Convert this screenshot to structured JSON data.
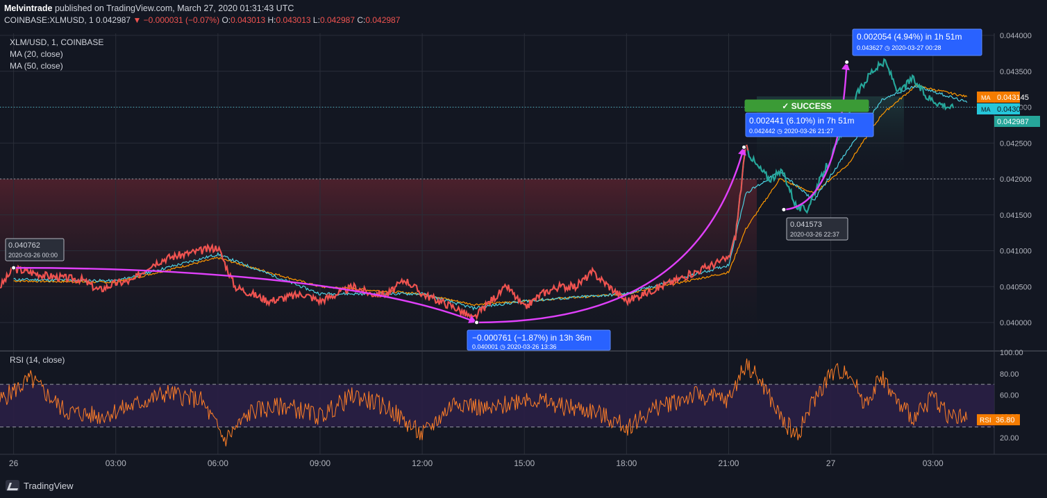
{
  "header": {
    "publisher": "Melvintrade",
    "published_text": "published on TradingView.com, March 27, 2020 01:31:43 UTC",
    "symbol": "COINBASE:XLMUSD, 1",
    "last": "0.042987",
    "change": "▼ −0.000031 (−0.07%)",
    "o_label": "O:",
    "o_value": "0.043013",
    "h_label": "H:",
    "h_value": "0.043013",
    "l_label": "L:",
    "l_value": "0.042987",
    "c_label": "C:",
    "c_value": "0.042987"
  },
  "legend": {
    "series": "XLM/USD, 1, COINBASE",
    "ma20": "MA (20, close)",
    "ma50": "MA (50, close)",
    "rsi": "RSI (14, close)"
  },
  "footer": {
    "brand": "TradingView"
  },
  "colors": {
    "background": "#131722",
    "price_down": "#ef5350",
    "price_up": "#26a69a",
    "ma20": "#4dd0e1",
    "ma50": "#ff9800",
    "rsi": "#ff7f27",
    "arrow": "#e040fb",
    "callout": "#2962ff",
    "success": "#3b9b36"
  },
  "chart_data": [
    {
      "type": "line",
      "pane": "price",
      "x_labels": [
        "26",
        "03:00",
        "06:00",
        "09:00",
        "12:00",
        "15:00",
        "18:00",
        "21:00",
        "27",
        "03:00"
      ],
      "x_label_hours": [
        0,
        3,
        6,
        9,
        12,
        15,
        18,
        21,
        24,
        27
      ],
      "y_ticks": [
        "0.040000",
        "0.040500",
        "0.041000",
        "0.041500",
        "0.042000",
        "0.042500",
        "0.043000",
        "0.043500",
        "0.044000"
      ],
      "ylim": [
        0.04,
        0.044
      ],
      "xlim_hours": [
        -0.4,
        28.8
      ],
      "series": [
        {
          "name": "XLM/USD",
          "x_hours": [
            -0.4,
            0,
            0.5,
            1,
            1.5,
            2,
            2.5,
            3,
            3.5,
            4,
            4.5,
            5,
            5.5,
            6,
            6.5,
            7,
            7.5,
            8,
            8.5,
            9,
            9.5,
            10,
            10.5,
            11,
            11.5,
            12,
            12.5,
            13,
            13.5,
            14,
            14.5,
            15,
            15.5,
            16,
            16.5,
            17,
            17.5,
            18,
            18.5,
            19,
            19.5,
            20,
            20.5,
            21,
            21.2,
            21.5,
            21.8,
            22.2,
            22.6,
            23,
            23.3,
            23.6,
            24,
            24.4,
            24.8,
            25.2,
            25.6,
            26,
            26.4,
            26.8,
            27.2,
            27.6,
            28.0,
            28.4,
            28.8
          ],
          "values": [
            0.0405,
            0.04075,
            0.0407,
            0.04065,
            0.04062,
            0.0406,
            0.04045,
            0.04055,
            0.04058,
            0.0408,
            0.0409,
            0.04095,
            0.041,
            0.04105,
            0.0405,
            0.0404,
            0.0403,
            0.04035,
            0.0404,
            0.0403,
            0.0404,
            0.0405,
            0.0404,
            0.0404,
            0.0406,
            0.0404,
            0.0403,
            0.0402,
            0.04005,
            0.0403,
            0.0405,
            0.0402,
            0.0404,
            0.0405,
            0.0405,
            0.0407,
            0.0405,
            0.0403,
            0.0404,
            0.0405,
            0.0406,
            0.0407,
            0.0408,
            0.0409,
            0.0412,
            0.042442,
            0.0422,
            0.042,
            0.0421,
            0.0416,
            0.041573,
            0.0419,
            0.0423,
            0.0427,
            0.0432,
            0.0435,
            0.043627,
            0.0432,
            0.0434,
            0.04315,
            0.04305,
            0.042987,
            null,
            null,
            null
          ]
        },
        {
          "name": "MA (20, close)",
          "x_hours": [
            0,
            3,
            6,
            9,
            12,
            13.5,
            15,
            18,
            21,
            21.5,
            22.5,
            23.5,
            24.5,
            25.5,
            26.5,
            28.0
          ],
          "values": [
            0.0406,
            0.04058,
            0.04095,
            0.0404,
            0.0404,
            0.0402,
            0.0403,
            0.0404,
            0.0408,
            0.0418,
            0.0421,
            0.0417,
            0.0424,
            0.0431,
            0.0433,
            0.043065
          ]
        },
        {
          "name": "MA (50, close)",
          "x_hours": [
            0,
            3,
            6,
            9,
            12,
            13.5,
            15,
            18,
            21,
            21.5,
            22.5,
            23.5,
            24.5,
            25.5,
            26.5,
            28.0
          ],
          "values": [
            0.04058,
            0.04056,
            0.0409,
            0.0405,
            0.0404,
            0.04025,
            0.0403,
            0.0404,
            0.0407,
            0.0413,
            0.042,
            0.0418,
            0.0422,
            0.0429,
            0.0433,
            0.043145
          ]
        }
      ],
      "price_labels": {
        "ma50_tag": "MA",
        "ma50_value": "0.043145",
        "ma20_tag": "MA",
        "ma20_value": "0.043065",
        "last_value": "0.042987"
      },
      "annotations": {
        "start_price": "0.040762",
        "start_date": "2020-03-26 00:00",
        "low_change": "−0.000761 (−1.87%) in 13h 36m",
        "low_sub": "0.040001 ◷ 2020-03-26 13:36",
        "mid_change": "0.002441 (6.10%) in 7h 51m",
        "mid_sub": "0.042442 ◷ 2020-03-26 21:27",
        "dip_price": "0.041573",
        "dip_date": "2020-03-26 22:37",
        "peak_change": "0.002054 (4.94%) in 1h 51m",
        "peak_sub": "0.043627 ◷ 2020-03-27 00:28",
        "success": "✓ SUCCESS"
      }
    },
    {
      "type": "line",
      "pane": "rsi",
      "name": "RSI (14, close)",
      "y_ticks": [
        "20.00",
        "40.00",
        "60.00",
        "80.00",
        "100.00"
      ],
      "ylim": [
        10,
        100
      ],
      "bands": [
        30,
        70
      ],
      "last_tag": "RSI",
      "last_value": "36.80",
      "x_hours": [
        -0.4,
        0.5,
        1.5,
        2.5,
        3.5,
        4.5,
        5.5,
        6.2,
        7,
        8,
        9,
        10,
        11,
        12,
        13,
        14,
        15,
        16,
        17,
        18,
        19,
        20,
        21,
        21.5,
        22,
        22.5,
        23,
        23.5,
        24,
        24.5,
        25,
        25.5,
        26,
        26.5,
        27,
        27.5,
        28.0
      ],
      "values": [
        55,
        75,
        45,
        40,
        50,
        62,
        55,
        18,
        45,
        50,
        40,
        60,
        48,
        22,
        55,
        45,
        58,
        50,
        45,
        30,
        50,
        60,
        55,
        90,
        70,
        40,
        22,
        55,
        80,
        84,
        52,
        78,
        50,
        38,
        60,
        40,
        36.8
      ]
    }
  ]
}
